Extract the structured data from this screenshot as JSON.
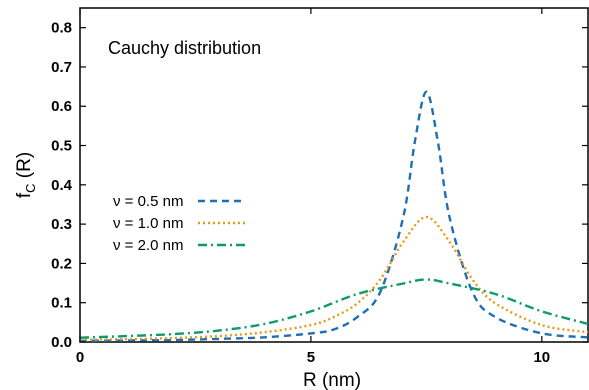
{
  "chart_data": {
    "type": "line",
    "title": "",
    "annotation": "Cauchy distribution",
    "xlabel": "R (nm)",
    "ylabel_main": "f",
    "ylabel_sub": "C",
    "ylabel_tail": " (R)",
    "xlim": [
      0,
      11
    ],
    "ylim": [
      0,
      0.85
    ],
    "x_ticks": [
      0,
      5,
      10
    ],
    "x_tick_labels": [
      "0",
      "5",
      "10"
    ],
    "y_ticks": [
      0,
      0.1,
      0.2,
      0.3,
      0.4,
      0.5,
      0.6,
      0.7,
      0.8
    ],
    "y_tick_labels": [
      "0.0",
      "0.1",
      "0.2",
      "0.3",
      "0.4",
      "0.5",
      "0.6",
      "0.7",
      "0.8"
    ],
    "grid": false,
    "legend_position": "middle-left",
    "series": [
      {
        "name": "ν = 0.5 nm",
        "color": "#1f6fb4",
        "dash": "dashed",
        "values": [
          [
            0,
            0.003
          ],
          [
            1,
            0.004
          ],
          [
            2,
            0.005
          ],
          [
            3,
            0.008
          ],
          [
            4,
            0.012
          ],
          [
            5,
            0.022
          ],
          [
            5.5,
            0.032
          ],
          [
            6,
            0.063
          ],
          [
            6.5,
            0.127
          ],
          [
            7,
            0.318
          ],
          [
            7.25,
            0.509
          ],
          [
            7.5,
            0.637
          ],
          [
            7.75,
            0.509
          ],
          [
            8,
            0.318
          ],
          [
            8.5,
            0.127
          ],
          [
            9,
            0.063
          ],
          [
            10,
            0.022
          ],
          [
            11,
            0.012
          ]
        ]
      },
      {
        "name": "ν = 1.0 nm",
        "color": "#e39a18",
        "dash": "dotted",
        "values": [
          [
            0,
            0.006
          ],
          [
            1,
            0.007
          ],
          [
            2,
            0.01
          ],
          [
            3,
            0.015
          ],
          [
            4,
            0.025
          ],
          [
            5,
            0.043
          ],
          [
            5.5,
            0.064
          ],
          [
            6,
            0.098
          ],
          [
            6.5,
            0.159
          ],
          [
            7,
            0.255
          ],
          [
            7.5,
            0.318
          ],
          [
            8,
            0.255
          ],
          [
            8.5,
            0.159
          ],
          [
            9,
            0.098
          ],
          [
            10,
            0.043
          ],
          [
            11,
            0.025
          ]
        ]
      },
      {
        "name": "ν = 2.0 nm",
        "color": "#0f9a6a",
        "dash": "dashdot",
        "values": [
          [
            0,
            0.011
          ],
          [
            1,
            0.015
          ],
          [
            2,
            0.02
          ],
          [
            3,
            0.029
          ],
          [
            4,
            0.046
          ],
          [
            5,
            0.078
          ],
          [
            6,
            0.122
          ],
          [
            7,
            0.149
          ],
          [
            7.5,
            0.159
          ],
          [
            8,
            0.149
          ],
          [
            9,
            0.122
          ],
          [
            10,
            0.078
          ],
          [
            11,
            0.046
          ]
        ]
      }
    ]
  }
}
